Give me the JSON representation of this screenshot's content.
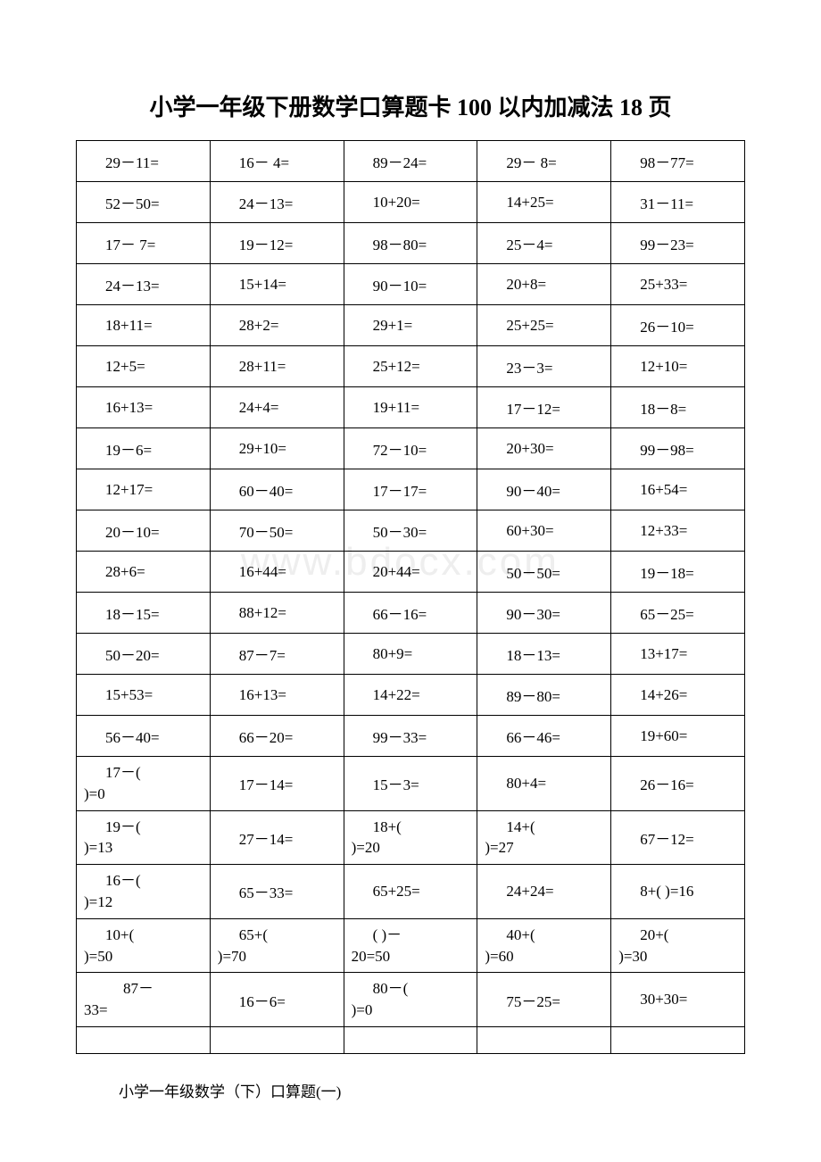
{
  "title": "小学一年级下册数学口算题卡 100 以内加减法 18 页",
  "footer": "小学一年级数学（下）口算题(一)",
  "watermark": "www.bdocx.com",
  "table": {
    "columns": 5,
    "rows": [
      [
        "29－11=",
        "16－ 4=",
        "89－24=",
        "29－ 8=",
        "98－77="
      ],
      [
        "52－50=",
        "24－13=",
        "10+20=",
        "14+25=",
        "31－11="
      ],
      [
        "17－ 7=",
        "19－12=",
        "98－80=",
        "25－4=",
        "99－23="
      ],
      [
        "24－13=",
        "15+14=",
        "90－10=",
        "20+8=",
        "25+33="
      ],
      [
        "18+11=",
        "28+2=",
        "29+1=",
        "25+25=",
        "26－10="
      ],
      [
        "12+5=",
        "28+11=",
        "25+12=",
        "23－3=",
        "12+10="
      ],
      [
        "16+13=",
        "24+4=",
        "19+11=",
        "17－12=",
        "18－8="
      ],
      [
        "19－6=",
        "29+10=",
        "72－10=",
        "20+30=",
        "99－98="
      ],
      [
        "12+17=",
        "60－40=",
        "17－17=",
        "90－40=",
        "16+54="
      ],
      [
        "20－10=",
        "70－50=",
        "50－30=",
        "60+30=",
        "12+33="
      ],
      [
        "28+6=",
        "16+44=",
        "20+44=",
        "50－50=",
        "19－18="
      ],
      [
        "18－15=",
        "88+12=",
        "66－16=",
        "90－30=",
        "65－25="
      ],
      [
        "50－20=",
        "87－7=",
        "80+9=",
        "18－13=",
        "13+17="
      ],
      [
        "15+53=",
        "16+13=",
        "14+22=",
        "89－80=",
        "14+26="
      ],
      [
        "56－40=",
        "66－20=",
        "99－33=",
        "66－46=",
        "19+60="
      ]
    ],
    "multiline_rows": [
      [
        {
          "l1": "17－(",
          "l2": ")=0"
        },
        {
          "single": "17－14="
        },
        {
          "single": "15－3="
        },
        {
          "single": "80+4="
        },
        {
          "single": "26－16="
        }
      ],
      [
        {
          "l1": "19－(",
          "l2": ")=13"
        },
        {
          "single": "27－14="
        },
        {
          "l1": "18+(",
          "l2": ")=20"
        },
        {
          "l1": "14+(",
          "l2": ")=27"
        },
        {
          "single": "67－12="
        }
      ],
      [
        {
          "l1": "16－(",
          "l2": ")=12"
        },
        {
          "single": "65－33="
        },
        {
          "single": "65+25="
        },
        {
          "single": "24+24="
        },
        {
          "single": "8+( )=16"
        }
      ],
      [
        {
          "l1": "10+(",
          "l2": ")=50"
        },
        {
          "l1": "65+(",
          "l2": ")=70"
        },
        {
          "l1": "( )－",
          "l2": "20=50"
        },
        {
          "l1": "40+(",
          "l2": ")=60"
        },
        {
          "l1": "20+(",
          "l2": ")=30"
        }
      ],
      [
        {
          "l1": "87－",
          "l2": "33=",
          "indent1": "48px"
        },
        {
          "single": "16－6="
        },
        {
          "l1": "80－(",
          "l2": ")=0"
        },
        {
          "single": "75－25="
        },
        {
          "single": "30+30="
        }
      ]
    ],
    "empty_row": true
  }
}
